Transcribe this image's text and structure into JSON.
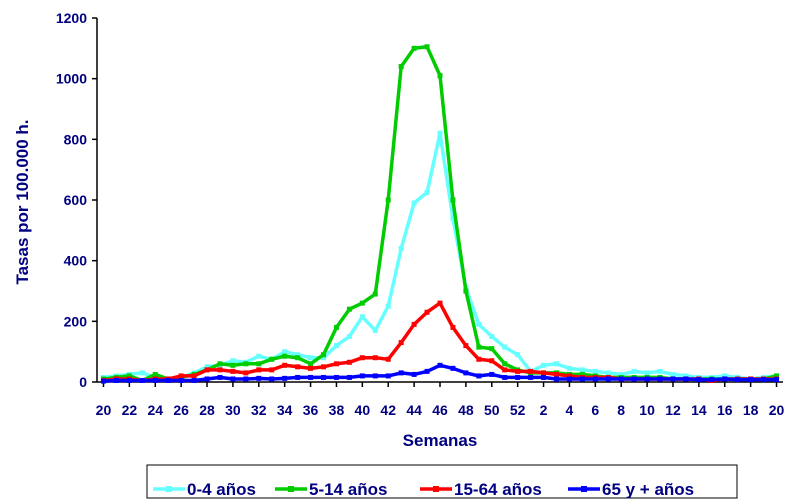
{
  "chart_data": {
    "type": "line",
    "xlabel": "Semanas",
    "ylabel": "Tasas por 100.000 h.",
    "ylim": [
      0,
      1200
    ],
    "yticks": [
      "0",
      "200",
      "400",
      "600",
      "800",
      "1000",
      "1200"
    ],
    "categories": [
      "20",
      "21",
      "22",
      "23",
      "24",
      "25",
      "26",
      "27",
      "28",
      "29",
      "30",
      "31",
      "32",
      "33",
      "34",
      "35",
      "36",
      "37",
      "38",
      "39",
      "40",
      "41",
      "42",
      "43",
      "44",
      "45",
      "46",
      "47",
      "48",
      "49",
      "50",
      "51",
      "52",
      "1",
      "2",
      "3",
      "4",
      "5",
      "6",
      "7",
      "8",
      "9",
      "10",
      "11",
      "12",
      "13",
      "14",
      "15",
      "16",
      "17",
      "18",
      "19",
      "20"
    ],
    "tick_labels": [
      "20",
      "22",
      "24",
      "26",
      "28",
      "30",
      "32",
      "34",
      "36",
      "38",
      "40",
      "42",
      "44",
      "46",
      "48",
      "50",
      "52",
      "2",
      "4",
      "6",
      "8",
      "10",
      "12",
      "14",
      "16",
      "18",
      "20"
    ],
    "legend_position": "bottom",
    "grid": false,
    "series": [
      {
        "name": "0-4 años",
        "color": "#66ffff",
        "values": [
          15,
          20,
          25,
          30,
          15,
          10,
          15,
          30,
          50,
          55,
          70,
          65,
          85,
          75,
          100,
          90,
          80,
          80,
          120,
          150,
          215,
          170,
          250,
          440,
          590,
          625,
          820,
          540,
          310,
          190,
          150,
          115,
          90,
          35,
          55,
          60,
          45,
          40,
          35,
          30,
          25,
          35,
          30,
          35,
          25,
          20,
          15,
          15,
          20,
          15,
          10,
          15,
          20
        ]
      },
      {
        "name": "5-14 años",
        "color": "#00cc00",
        "values": [
          10,
          15,
          20,
          5,
          25,
          10,
          15,
          25,
          40,
          60,
          55,
          60,
          60,
          75,
          85,
          80,
          60,
          90,
          180,
          240,
          260,
          290,
          600,
          1040,
          1100,
          1105,
          1010,
          600,
          300,
          115,
          110,
          60,
          40,
          30,
          30,
          30,
          25,
          25,
          20,
          15,
          15,
          15,
          15,
          15,
          10,
          10,
          10,
          10,
          10,
          10,
          10,
          10,
          20
        ]
      },
      {
        "name": "15-64 años",
        "color": "#ff0000",
        "values": [
          5,
          10,
          10,
          5,
          10,
          10,
          20,
          20,
          40,
          40,
          35,
          30,
          40,
          40,
          55,
          50,
          45,
          50,
          60,
          65,
          80,
          80,
          75,
          130,
          190,
          230,
          260,
          180,
          120,
          75,
          70,
          40,
          35,
          35,
          30,
          25,
          20,
          15,
          15,
          15,
          10,
          10,
          10,
          10,
          10,
          10,
          10,
          5,
          10,
          10,
          10,
          10,
          10
        ]
      },
      {
        "name": "65 y + años",
        "color": "#0000ff",
        "values": [
          3,
          5,
          5,
          5,
          5,
          5,
          5,
          5,
          10,
          15,
          10,
          10,
          12,
          10,
          12,
          15,
          15,
          15,
          15,
          15,
          20,
          20,
          20,
          30,
          25,
          35,
          55,
          45,
          30,
          20,
          25,
          15,
          15,
          15,
          15,
          10,
          10,
          10,
          10,
          10,
          10,
          10,
          10,
          10,
          10,
          10,
          8,
          8,
          10,
          8,
          8,
          8,
          8
        ]
      }
    ]
  }
}
